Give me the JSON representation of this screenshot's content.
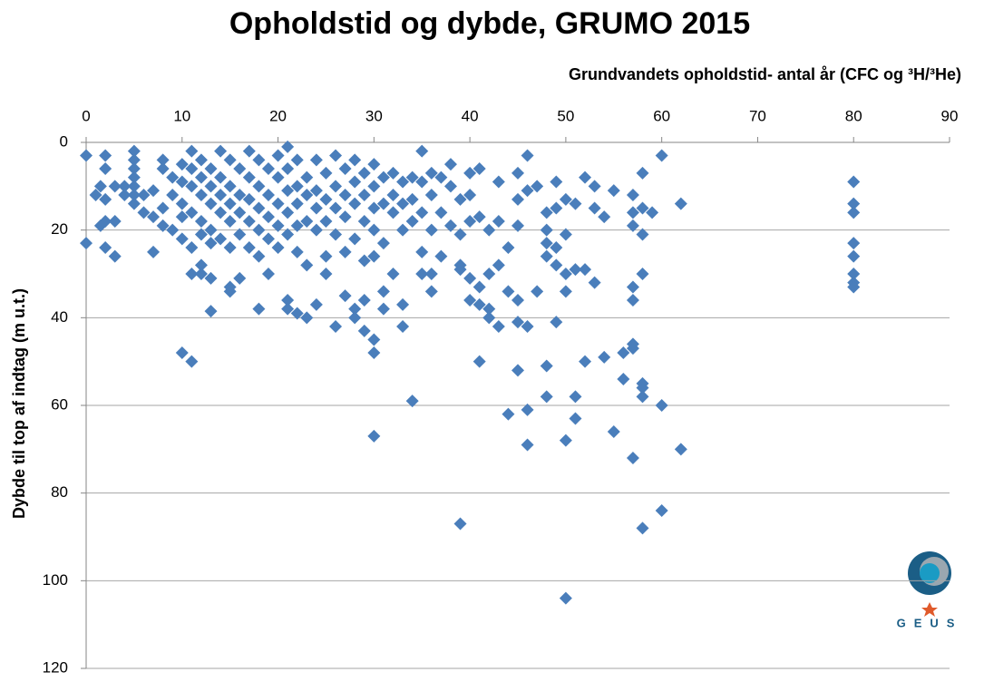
{
  "chart_data": {
    "type": "scatter",
    "title": "Opholdstid og dybde, GRUMO 2015",
    "x_label": "Grundvandets opholdstid- antal år (CFC og ³H/³He)",
    "y_label": "Dybde til top af indtag (m u.t.)",
    "logo": "GEUS",
    "xlim": [
      0,
      90
    ],
    "xticks": [
      0,
      10,
      20,
      30,
      40,
      50,
      60,
      70,
      80,
      90
    ],
    "ylim": [
      0,
      120
    ],
    "yticks": [
      0,
      20,
      40,
      60,
      80,
      100,
      120
    ],
    "y_inverted": true,
    "x_axis_position": "top",
    "grid": true,
    "series": [
      {
        "name": "GRUMO 2015",
        "color": "#4a7ebb",
        "marker": "diamond",
        "x": [
          0,
          0,
          1.5,
          2,
          3,
          2,
          7,
          10,
          11,
          13,
          11,
          12,
          12,
          13,
          15,
          16,
          15,
          18,
          19,
          21,
          21,
          22,
          23,
          24,
          25,
          26,
          27,
          28,
          28,
          29,
          29,
          30,
          30,
          30,
          31,
          31,
          32,
          33,
          33,
          34,
          35,
          36,
          36,
          37,
          39,
          39,
          39,
          40,
          40,
          41,
          41,
          41,
          42,
          42,
          42,
          43,
          43,
          44,
          44,
          45,
          45,
          45,
          46,
          46,
          46,
          47,
          48,
          48,
          48,
          48,
          49,
          49,
          49,
          50,
          50,
          50,
          50,
          51,
          51,
          51,
          52,
          52,
          53,
          54,
          55,
          56,
          56,
          57,
          57,
          57,
          57,
          57,
          58,
          58,
          58,
          58,
          58,
          60,
          60,
          62,
          80,
          80,
          80,
          80,
          80,
          80,
          80,
          80,
          1,
          1.5,
          2,
          2,
          2,
          3,
          3,
          4,
          4,
          5,
          5,
          5,
          5,
          5,
          5,
          5,
          6,
          6,
          7,
          7,
          8,
          8,
          8,
          8,
          9,
          9,
          9,
          10,
          10,
          10,
          10,
          10,
          11,
          11,
          11,
          11,
          11,
          12,
          12,
          12,
          12,
          12,
          13,
          13,
          13,
          13,
          13,
          14,
          14,
          14,
          14,
          14,
          15,
          15,
          15,
          15,
          15,
          16,
          16,
          16,
          16,
          17,
          17,
          17,
          17,
          17,
          18,
          18,
          18,
          18,
          18,
          19,
          19,
          19,
          19,
          20,
          20,
          20,
          20,
          20,
          21,
          21,
          21,
          21,
          21,
          22,
          22,
          22,
          22,
          22,
          23,
          23,
          23,
          23,
          24,
          24,
          24,
          24,
          25,
          25,
          25,
          25,
          26,
          26,
          26,
          26,
          27,
          27,
          27,
          27,
          28,
          28,
          28,
          28,
          29,
          29,
          29,
          29,
          30,
          30,
          30,
          30,
          30,
          31,
          31,
          31,
          32,
          32,
          32,
          33,
          33,
          33,
          34,
          34,
          34,
          35,
          35,
          35,
          35,
          36,
          36,
          36,
          37,
          37,
          38,
          38,
          38,
          39,
          39,
          40,
          40,
          40,
          41,
          41,
          42,
          43,
          43,
          44,
          45,
          45,
          45,
          46,
          46,
          47,
          48,
          48,
          49,
          49,
          50,
          50,
          51,
          52,
          53,
          53,
          54,
          55,
          57,
          57,
          57,
          58,
          58,
          58,
          59,
          60,
          62
        ],
        "values": [
          3,
          23,
          19,
          24,
          26,
          18,
          25,
          48,
          50,
          38.5,
          30,
          28,
          30,
          31,
          33,
          31,
          34,
          38,
          30,
          36,
          38,
          39,
          40,
          37,
          30,
          42,
          35,
          38,
          40,
          36,
          43,
          45,
          48,
          67,
          38,
          34,
          30,
          42,
          37,
          59,
          30,
          34,
          30,
          26,
          87,
          28,
          29,
          36,
          31,
          37,
          50,
          33,
          38,
          40,
          30,
          42,
          28,
          34,
          62,
          52,
          41,
          36,
          42,
          61,
          69,
          34,
          58,
          51,
          26,
          23,
          41,
          28,
          24,
          68,
          104,
          34,
          30,
          58,
          63,
          29,
          50,
          29,
          32,
          49,
          66,
          54,
          48,
          47,
          46,
          72,
          36,
          33,
          55,
          56,
          58,
          88,
          30,
          60,
          84,
          70,
          9,
          14,
          16,
          23,
          26,
          30,
          32,
          33,
          12,
          10,
          3,
          6,
          13,
          10,
          18,
          12,
          10,
          2,
          4,
          6,
          8,
          10,
          12,
          14,
          12,
          16,
          17,
          11,
          6,
          4,
          15,
          19,
          8,
          12,
          20,
          5,
          9,
          14,
          17,
          22,
          2,
          6,
          10,
          16,
          24,
          4,
          8,
          12,
          18,
          21,
          6,
          10,
          14,
          20,
          23,
          2,
          8,
          12,
          16,
          22,
          4,
          10,
          14,
          18,
          24,
          6,
          12,
          16,
          21,
          2,
          8,
          13,
          18,
          24,
          4,
          10,
          15,
          20,
          26,
          6,
          12,
          17,
          22,
          3,
          8,
          14,
          19,
          24,
          1,
          6,
          11,
          16,
          21,
          4,
          10,
          14,
          19,
          25,
          8,
          12,
          18,
          28,
          4,
          11,
          15,
          20,
          7,
          13,
          18,
          26,
          3,
          10,
          15,
          21,
          6,
          12,
          17,
          25,
          4,
          9,
          14,
          22,
          7,
          12,
          18,
          27,
          5,
          10,
          15,
          20,
          26,
          8,
          14,
          23,
          7,
          12,
          16,
          9,
          14,
          20,
          8,
          13,
          18,
          2,
          9,
          16,
          25,
          7,
          12,
          20,
          8,
          16,
          5,
          10,
          19,
          13,
          21,
          7,
          12,
          18,
          6,
          17,
          20,
          9,
          18,
          24,
          7,
          13,
          19,
          3,
          11,
          10,
          16,
          20,
          9,
          15,
          13,
          21,
          14,
          8,
          10,
          15,
          17,
          11,
          12,
          16,
          19,
          7,
          15,
          21,
          16,
          3,
          14
        ]
      }
    ]
  }
}
